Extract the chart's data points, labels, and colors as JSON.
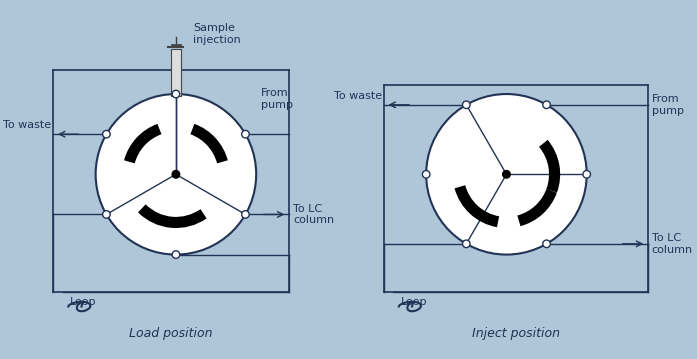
{
  "bg_color": "#aec6d8",
  "circle_color": "white",
  "line_color": "#1a1a2e",
  "arc_color": "black",
  "text_color": "#333355",
  "title_left": "Load position",
  "title_right": "Inject position",
  "label_sample": "Sample\ninjection",
  "label_from_pump_left": "From\npump",
  "label_to_waste_left": "To waste",
  "label_to_lc_left": "To LC\ncolumn",
  "label_loop_left": "Loop",
  "label_from_pump_right": "From\npump",
  "label_to_waste_right": "To waste",
  "label_to_lc_right": "To LC\ncolumn",
  "label_loop_right": "Loop"
}
